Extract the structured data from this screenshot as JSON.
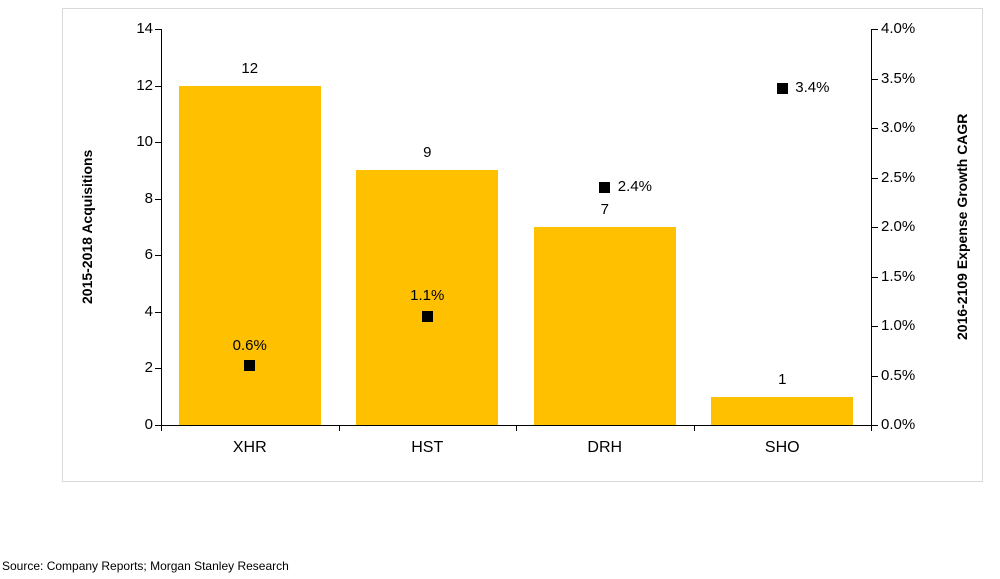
{
  "source_note": "Source: Company Reports; Morgan Stanley Research",
  "chart_data": {
    "type": "combo-bar-scatter",
    "categories": [
      "XHR",
      "HST",
      "DRH",
      "SHO"
    ],
    "left_axis": {
      "title": "2015-2018 Acquisitions",
      "min": 0,
      "max": 14,
      "step": 2,
      "tick_labels": [
        "0",
        "2",
        "4",
        "6",
        "8",
        "10",
        "12",
        "14"
      ]
    },
    "right_axis": {
      "title": "2016-2109 Expense Growth CAGR",
      "min": 0,
      "max": 4,
      "step": 0.5,
      "tick_labels": [
        "0.0%",
        "0.5%",
        "1.0%",
        "1.5%",
        "2.0%",
        "2.5%",
        "3.0%",
        "3.5%",
        "4.0%"
      ]
    },
    "series": [
      {
        "name": "2015-2018 Acquisitions",
        "type": "bar",
        "axis": "left",
        "color": "#FFC000",
        "values": [
          12,
          9,
          7,
          1
        ],
        "labels": [
          "12",
          "9",
          "7",
          "1"
        ]
      },
      {
        "name": "2016-2109 Expense Growth CAGR",
        "type": "scatter",
        "axis": "right",
        "marker": "square",
        "color": "#000000",
        "values": [
          0.6,
          1.1,
          2.4,
          3.4
        ],
        "labels": [
          "0.6%",
          "1.1%",
          "2.4%",
          "3.4%"
        ],
        "label_positions": [
          "above",
          "above",
          "right",
          "right"
        ]
      }
    ],
    "legend": "none",
    "grid": false
  }
}
